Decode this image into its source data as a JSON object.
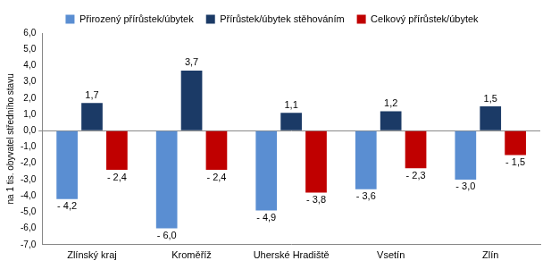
{
  "chart_data": {
    "type": "bar",
    "y_label": "na 1 tis. obyvatel středního stavu",
    "categories": [
      "Zlínský kraj",
      "Kroměříž",
      "Uherské Hradiště",
      "Vsetín",
      "Zlín"
    ],
    "series": [
      {
        "name": "Přirozený přírůstek/úbytek",
        "color": "#5a8ed2",
        "values": [
          -4.2,
          -6.0,
          -4.9,
          -3.6,
          -3.0
        ],
        "value_labels": [
          "- 4,2",
          "- 6,0",
          "- 4,9",
          "- 3,6",
          "- 3,0"
        ]
      },
      {
        "name": "Přírůstek/úbytek stěhováním",
        "color": "#1b3a66",
        "values": [
          1.7,
          3.7,
          1.1,
          1.2,
          1.5
        ],
        "value_labels": [
          "1,7",
          "3,7",
          "1,1",
          "1,2",
          "1,5"
        ]
      },
      {
        "name": "Celkový přírůstek/úbytek",
        "color": "#c00000",
        "values": [
          -2.4,
          -2.4,
          -3.8,
          -2.3,
          -1.5
        ],
        "value_labels": [
          "- 2,4",
          "- 2,4",
          "- 3,8",
          "- 2,3",
          "- 1,5"
        ]
      }
    ],
    "ylim": [
      -7,
      6
    ],
    "yticks": [
      {
        "value": -7,
        "label": "-7,0"
      },
      {
        "value": -6,
        "label": "-6,0"
      },
      {
        "value": -5,
        "label": "-5,0"
      },
      {
        "value": -4,
        "label": "-4,0"
      },
      {
        "value": -3,
        "label": "-3,0"
      },
      {
        "value": -2,
        "label": "-2,0"
      },
      {
        "value": -1,
        "label": "-1,0"
      },
      {
        "value": 0,
        "label": "0,0"
      },
      {
        "value": 1,
        "label": "1,0"
      },
      {
        "value": 2,
        "label": "2,0"
      },
      {
        "value": 3,
        "label": "3,0"
      },
      {
        "value": 4,
        "label": "4,0"
      },
      {
        "value": 5,
        "label": "5,0"
      },
      {
        "value": 6,
        "label": "6,0"
      }
    ],
    "grid": false,
    "legend": "top",
    "data_labels": true
  }
}
